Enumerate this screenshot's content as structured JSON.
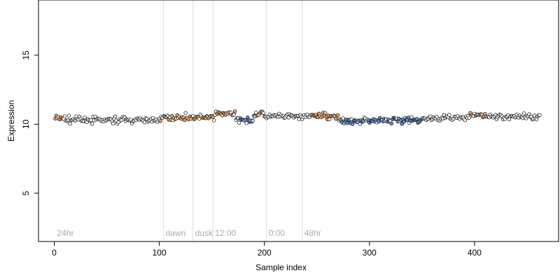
{
  "chart_data": {
    "type": "scatter",
    "title": "",
    "xlabel": "Sample index",
    "ylabel": "Expression",
    "xlim": [
      -15,
      480
    ],
    "ylim": [
      1.5,
      19.0
    ],
    "xticks": [
      0,
      100,
      200,
      300,
      400
    ],
    "yticks": [
      5,
      10,
      15
    ],
    "n_points": 462,
    "vertical_lines": [
      {
        "x": 0,
        "label": "24hr"
      },
      {
        "x": 104,
        "label": "dawn"
      },
      {
        "x": 132,
        "label": "dusk"
      },
      {
        "x": 151,
        "label": "12:00"
      },
      {
        "x": 202,
        "label": "0:00"
      },
      {
        "x": 236,
        "label": "48hr"
      }
    ],
    "colors": {
      "low": "#6d93d3",
      "mid": "#e9e9e9",
      "high": "#f5a45c"
    },
    "segments": [
      {
        "x": [
          0,
          10
        ],
        "y": 10.45,
        "tone": "high"
      },
      {
        "x": [
          10,
          100
        ],
        "y": 10.3,
        "tone": "mid"
      },
      {
        "x": [
          100,
          152
        ],
        "y": 10.5,
        "tone": "high"
      },
      {
        "x": [
          152,
          172
        ],
        "y": 10.75,
        "tone": "high"
      },
      {
        "x": [
          172,
          190
        ],
        "y": 10.35,
        "tone": "low"
      },
      {
        "x": [
          190,
          200
        ],
        "y": 10.75,
        "tone": "high"
      },
      {
        "x": [
          200,
          245
        ],
        "y": 10.55,
        "tone": "mid"
      },
      {
        "x": [
          245,
          270
        ],
        "y": 10.6,
        "tone": "high"
      },
      {
        "x": [
          270,
          300
        ],
        "y": 10.3,
        "tone": "low"
      },
      {
        "x": [
          300,
          350
        ],
        "y": 10.35,
        "tone": "low"
      },
      {
        "x": [
          350,
          395
        ],
        "y": 10.45,
        "tone": "mid"
      },
      {
        "x": [
          395,
          410
        ],
        "y": 10.65,
        "tone": "high"
      },
      {
        "x": [
          410,
          462
        ],
        "y": 10.55,
        "tone": "mid"
      }
    ],
    "noise_sd": 0.22
  }
}
